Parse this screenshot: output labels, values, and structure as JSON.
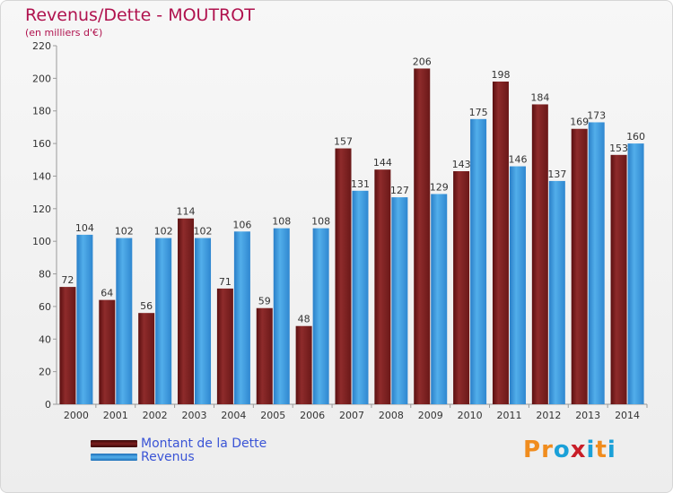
{
  "page": {
    "title": "Revenus/Dette - MOUTROT",
    "subtitle": "(en milliers d'€)"
  },
  "logo": {
    "text": "Proxiti",
    "colors": [
      "#f08c1e",
      "#f08c1e",
      "#1aa0d8",
      "#c81e28",
      "#1aa0d8",
      "#f08c1e",
      "#1aa0d8"
    ]
  },
  "chart_data": {
    "type": "bar",
    "categories": [
      "2000",
      "2001",
      "2002",
      "2003",
      "2004",
      "2005",
      "2006",
      "2007",
      "2008",
      "2009",
      "2010",
      "2011",
      "2012",
      "2013",
      "2014"
    ],
    "series": [
      {
        "name": "Montant de la Dette",
        "color": "#7a1f1f",
        "values": [
          72,
          64,
          56,
          114,
          71,
          59,
          48,
          157,
          144,
          206,
          143,
          198,
          184,
          169,
          153
        ]
      },
      {
        "name": "Revenus",
        "color": "#3d9be0",
        "values": [
          104,
          102,
          102,
          102,
          106,
          108,
          108,
          131,
          127,
          129,
          175,
          146,
          137,
          173,
          160
        ]
      }
    ],
    "ylim": [
      0,
      220
    ],
    "yticks": [
      0,
      20,
      40,
      60,
      80,
      100,
      120,
      140,
      160,
      180,
      200,
      220
    ],
    "grid": false,
    "legend": "bottom-left",
    "data_labels": true
  }
}
